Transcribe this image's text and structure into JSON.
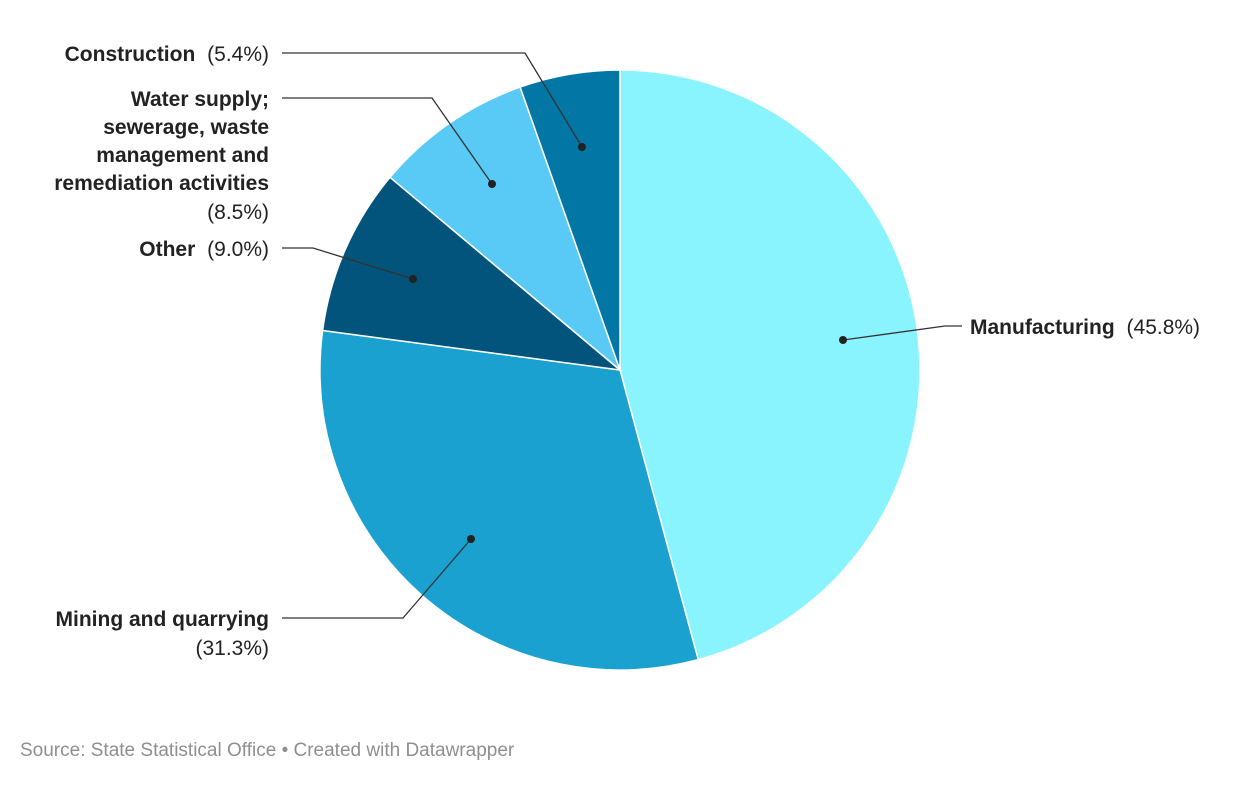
{
  "chart_data": {
    "type": "pie",
    "slices": [
      {
        "label": "Manufacturing",
        "value": 45.8,
        "display": "(45.8%)",
        "color": "#8af4fe"
      },
      {
        "label": "Mining and quarrying",
        "value": 31.3,
        "display": "(31.3%)",
        "color": "#1aa1cf"
      },
      {
        "label": "Other",
        "value": 9.0,
        "display": "(9.0%)",
        "color": "#03547c"
      },
      {
        "label": "Water supply; sewerage, waste management and remediation activities",
        "value": 8.5,
        "display": "(8.5%)",
        "color": "#59c9f6"
      },
      {
        "label": "Construction",
        "value": 5.4,
        "display": "(5.4%)",
        "color": "#0276a5"
      }
    ]
  },
  "footer": {
    "source": "Source: State Statistical Office",
    "separator": "•",
    "credit": "Created with Datawrapper"
  }
}
